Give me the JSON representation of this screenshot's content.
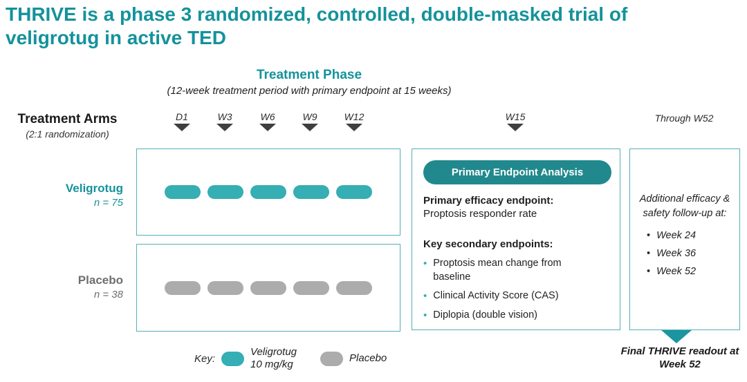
{
  "title": "THRIVE is a phase 3 randomized, controlled, double-masked trial of veligrotug in active TED",
  "treatment_phase": {
    "heading": "Treatment Phase",
    "subtitle": "(12-week treatment period with primary endpoint at 15 weeks)"
  },
  "treatment_arms": {
    "heading": "Treatment Arms",
    "subheading": "(2:1 randomization)",
    "arms": [
      {
        "name": "Veligrotug",
        "n": "n = 75",
        "doses": 5,
        "swatch": "teal"
      },
      {
        "name": "Placebo",
        "n": "n = 38",
        "doses": 5,
        "swatch": "gray"
      }
    ]
  },
  "timeline": {
    "treatment_weeks": [
      "D1",
      "W3",
      "W6",
      "W9",
      "W12"
    ],
    "endpoint_week": "W15",
    "followup_label": "Through W52"
  },
  "primary_endpoint_panel": {
    "header": "Primary Endpoint Analysis",
    "primary_label": "Primary efficacy endpoint:",
    "primary_value": "Proptosis responder rate",
    "secondary_label": "Key secondary endpoints:",
    "secondary_items": [
      "Proptosis mean change from baseline",
      "Clinical Activity Score (CAS)",
      "Diplopia (double vision)"
    ]
  },
  "followup_panel": {
    "intro": "Additional efficacy & safety follow-up at:",
    "items": [
      "Week 24",
      "Week 36",
      "Week 52"
    ],
    "footer": "Final THRIVE readout at Week 52"
  },
  "legend": {
    "label": "Key:",
    "items": [
      {
        "swatch": "teal",
        "label": "Veligrotug\n10 mg/kg"
      },
      {
        "swatch": "gray",
        "label": "Placebo"
      }
    ]
  },
  "colors": {
    "teal-dark": "#14929B",
    "teal-pill": "#35AEB4",
    "teal-button": "#21898D",
    "teal-border": "#55AEB4",
    "teal-arrow": "#1B96A1",
    "gray-pill": "#ACACAC",
    "gray-text": "#6E6E6E",
    "marker-dark": "#3F3F3F",
    "text": "#1F1F1F"
  }
}
